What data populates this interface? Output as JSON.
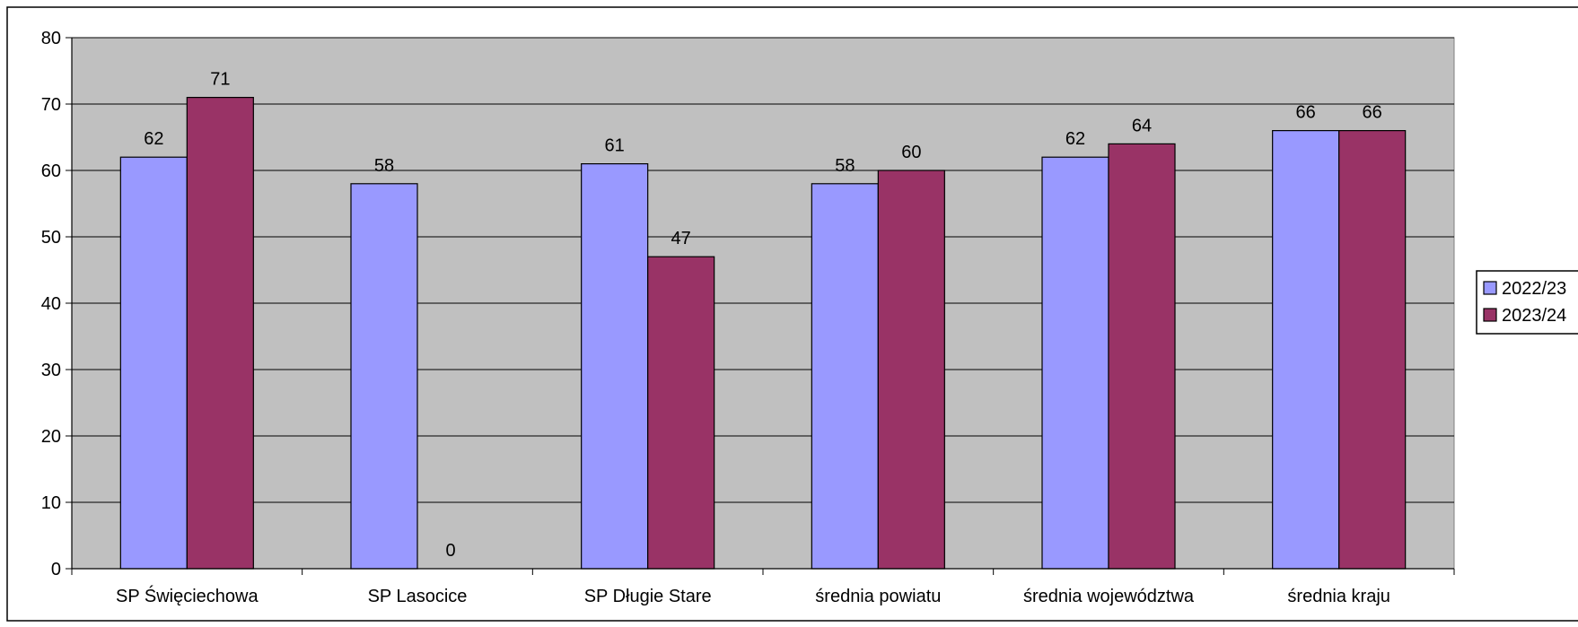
{
  "chart_data": {
    "type": "bar",
    "categories": [
      "SP Święciechowa",
      "SP Lasocice",
      "SP Długie Stare",
      "średnia powiatu",
      "średnia województwa",
      "średnia kraju"
    ],
    "series": [
      {
        "name": "2022/23",
        "color": "#9999ff",
        "values": [
          62,
          58,
          61,
          58,
          62,
          66
        ]
      },
      {
        "name": "2023/24",
        "color": "#993366",
        "values": [
          71,
          0,
          47,
          60,
          64,
          66
        ]
      }
    ],
    "yticks": [
      0,
      10,
      20,
      30,
      40,
      50,
      60,
      70,
      80
    ],
    "ylim": [
      0,
      80
    ],
    "grid": true,
    "plot_background": "#c0c0c0",
    "legend_position": "right"
  }
}
